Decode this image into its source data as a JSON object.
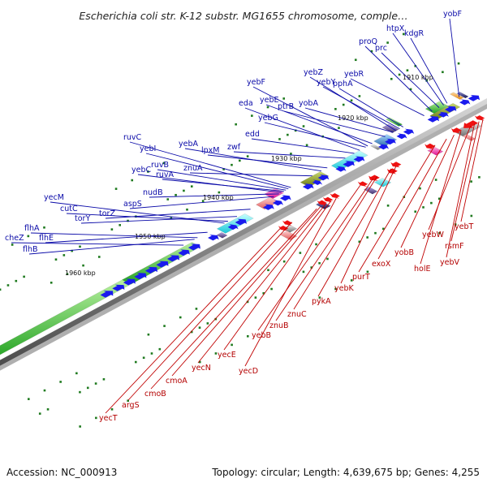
{
  "title": "Escherichia coli str. K-12 substr. MG1655 chromosome, comple…",
  "footer": {
    "accession": "Accession: NC_000913",
    "summary": "Topology: circular; Length: 4,639,675 bp; Genes: 4,255"
  },
  "colors": {
    "forward_gene": "#1a1aee",
    "reverse_gene": "#ee1111",
    "label_forward": "#0a0aa8",
    "label_reverse": "#c00000",
    "backbone": "#8a8a8a",
    "tick": "#1f7a1f"
  },
  "kbp_markers": [
    "1910 kbp",
    "1920 kbp",
    "1930 kbp",
    "1940 kbp",
    "1950 kbp",
    "1960 kbp"
  ],
  "top_genes": [
    {
      "name": "yobF",
      "kbp": 1908.2
    },
    {
      "name": "kdgR",
      "kbp": 1910.6
    },
    {
      "name": "htpX",
      "kbp": 1911.3
    },
    {
      "name": "prc",
      "kbp": 1912.2
    },
    {
      "name": "proQ",
      "kbp": 1913.6
    },
    {
      "name": "yebR",
      "kbp": 1915.2
    },
    {
      "name": "pphA",
      "kbp": 1919.4
    },
    {
      "name": "yebY",
      "kbp": 1920.1
    },
    {
      "name": "yebZ",
      "kbp": 1920.8
    },
    {
      "name": "yobA",
      "kbp": 1921.4
    },
    {
      "name": "ptrB",
      "kbp": 1923.0
    },
    {
      "name": "yebE",
      "kbp": 1925.6
    },
    {
      "name": "yebF",
      "kbp": 1926.5
    },
    {
      "name": "yebG",
      "kbp": 1926.9
    },
    {
      "name": "eda",
      "kbp": 1928.1
    },
    {
      "name": "edd",
      "kbp": 1929.2
    },
    {
      "name": "zwf",
      "kbp": 1931.0
    },
    {
      "name": "lpxM",
      "kbp": 1934.6
    },
    {
      "name": "yebA",
      "kbp": 1935.8
    },
    {
      "name": "znuA",
      "kbp": 1937.6
    },
    {
      "name": "ruvC",
      "kbp": 1941.9
    },
    {
      "name": "yebI",
      "kbp": 1942.4
    },
    {
      "name": "ruvB",
      "kbp": 1942.9
    },
    {
      "name": "ruvA",
      "kbp": 1943.3
    },
    {
      "name": "yebC",
      "kbp": 1943.8
    },
    {
      "name": "nudB",
      "kbp": 1944.3
    },
    {
      "name": "aspS",
      "kbp": 1945.3
    },
    {
      "name": "torZ",
      "kbp": 1950.0
    },
    {
      "name": "torY",
      "kbp": 1952.7
    },
    {
      "name": "cutC",
      "kbp": 1954.5
    },
    {
      "name": "yecM",
      "kbp": 1955.2
    },
    {
      "name": "flhA",
      "kbp": 1960.6
    },
    {
      "name": "flhE",
      "kbp": 1958.6
    },
    {
      "name": "cheZ",
      "kbp": 1963.4
    },
    {
      "name": "flhB",
      "kbp": 1961.2
    }
  ],
  "bottom_genes": [
    {
      "name": "yebT",
      "kbp": 1910.0
    },
    {
      "name": "rsmF",
      "kbp": 1910.8
    },
    {
      "name": "yebV",
      "kbp": 1911.7
    },
    {
      "name": "yebW",
      "kbp": 1912.5
    },
    {
      "name": "holE",
      "kbp": 1914.4
    },
    {
      "name": "yobB",
      "kbp": 1915.8
    },
    {
      "name": "exoX",
      "kbp": 1917.3
    },
    {
      "name": "purT",
      "kbp": 1919.6
    },
    {
      "name": "yebK",
      "kbp": 1927.4
    },
    {
      "name": "pykA",
      "kbp": 1928.4
    },
    {
      "name": "znuC",
      "kbp": 1931.2
    },
    {
      "name": "znuB",
      "kbp": 1932.0
    },
    {
      "name": "yebB",
      "kbp": 1934.6
    },
    {
      "name": "yecD",
      "kbp": 1939.4
    },
    {
      "name": "yecE",
      "kbp": 1940.5
    },
    {
      "name": "yecN",
      "kbp": 1941.5
    },
    {
      "name": "cmoA",
      "kbp": 1942.6
    },
    {
      "name": "cmoB",
      "kbp": 1943.3
    },
    {
      "name": "argS",
      "kbp": 1948.3
    },
    {
      "name": "yecT",
      "kbp": 1950.6
    }
  ]
}
